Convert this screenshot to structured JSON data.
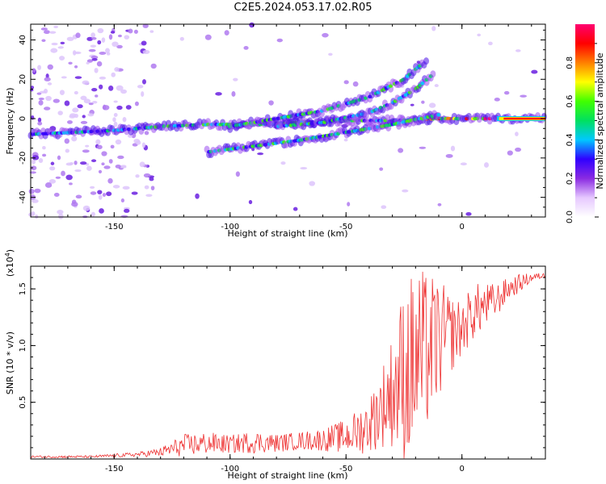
{
  "title": "C2E5.2024.053.17.02.R05",
  "chart_data": [
    {
      "type": "heatmap",
      "xlabel": "Height of straight line (km)",
      "ylabel": "Frequency (Hz)",
      "xlim": [
        -186,
        36
      ],
      "ylim": [
        -50,
        48
      ],
      "x_ticks": [
        -150,
        -100,
        -50,
        0
      ],
      "y_ticks": [
        -40,
        -20,
        0,
        20,
        40
      ],
      "colorbar": {
        "label": "Normalized spectral amplitude",
        "range": [
          0,
          1
        ],
        "ticks": [
          "0.0",
          "0.2",
          "0.4",
          "0.6",
          "0.8"
        ],
        "colors": [
          "#ffffff",
          "#e6c8ff",
          "#8a2be2",
          "#3000ff",
          "#00c8ff",
          "#00e060",
          "#40ff00",
          "#ffff00",
          "#ff8000",
          "#ff0000",
          "#ff0070"
        ]
      },
      "series": [
        {
          "x": [
            -186,
            -150,
            -130,
            -110,
            -90,
            -70,
            -50,
            -30,
            -10,
            10,
            36
          ],
          "y": [
            -8,
            -6,
            -4,
            -3,
            -3,
            -2,
            -1,
            -1,
            0,
            0,
            0
          ]
        },
        {
          "x": [
            -110,
            -90,
            -70,
            -50,
            -30,
            -10
          ],
          "y": [
            -17,
            -14,
            -11,
            -7,
            -3,
            2
          ]
        },
        {
          "x": [
            -100,
            -80,
            -60,
            -40,
            -25,
            -15
          ],
          "y": [
            -4,
            0,
            4,
            11,
            20,
            30
          ]
        },
        {
          "x": [
            -80,
            -60,
            -40,
            -30,
            -20,
            -12
          ],
          "y": [
            -4,
            -2,
            3,
            8,
            15,
            23
          ]
        }
      ]
    },
    {
      "type": "line",
      "xlabel": "Height of straight line (km)",
      "ylabel": "SNR (10 * v/v)",
      "y_multiplier": "(x10",
      "y_multiplier_exp": "4",
      "y_multiplier_close": ")",
      "xlim": [
        -186,
        36
      ],
      "ylim": [
        0,
        1.7
      ],
      "x_ticks": [
        -150,
        -100,
        -50,
        0
      ],
      "y_ticks": [
        "0.5",
        "1.0",
        "1.5"
      ],
      "color": "#ee3333",
      "envelope": {
        "x": [
          -186,
          -160,
          -140,
          -130,
          -120,
          -110,
          -100,
          -90,
          -80,
          -70,
          -60,
          -50,
          -45,
          -40,
          -35,
          -30,
          -25,
          -20,
          -15,
          -10,
          -5,
          0,
          5,
          10,
          15,
          20,
          25,
          30,
          36
        ],
        "base": [
          0.02,
          0.02,
          0.04,
          0.06,
          0.12,
          0.14,
          0.13,
          0.15,
          0.14,
          0.16,
          0.17,
          0.2,
          0.24,
          0.3,
          0.45,
          0.6,
          0.75,
          0.85,
          0.95,
          1.05,
          1.1,
          1.15,
          1.3,
          1.35,
          1.4,
          1.5,
          1.55,
          1.6,
          1.62
        ],
        "amp": [
          0.01,
          0.01,
          0.02,
          0.04,
          0.1,
          0.1,
          0.08,
          0.1,
          0.08,
          0.08,
          0.1,
          0.15,
          0.2,
          0.25,
          0.35,
          0.5,
          0.8,
          0.85,
          0.7,
          0.55,
          0.35,
          0.25,
          0.25,
          0.2,
          0.15,
          0.1,
          0.08,
          0.04,
          0.02
        ]
      }
    }
  ]
}
